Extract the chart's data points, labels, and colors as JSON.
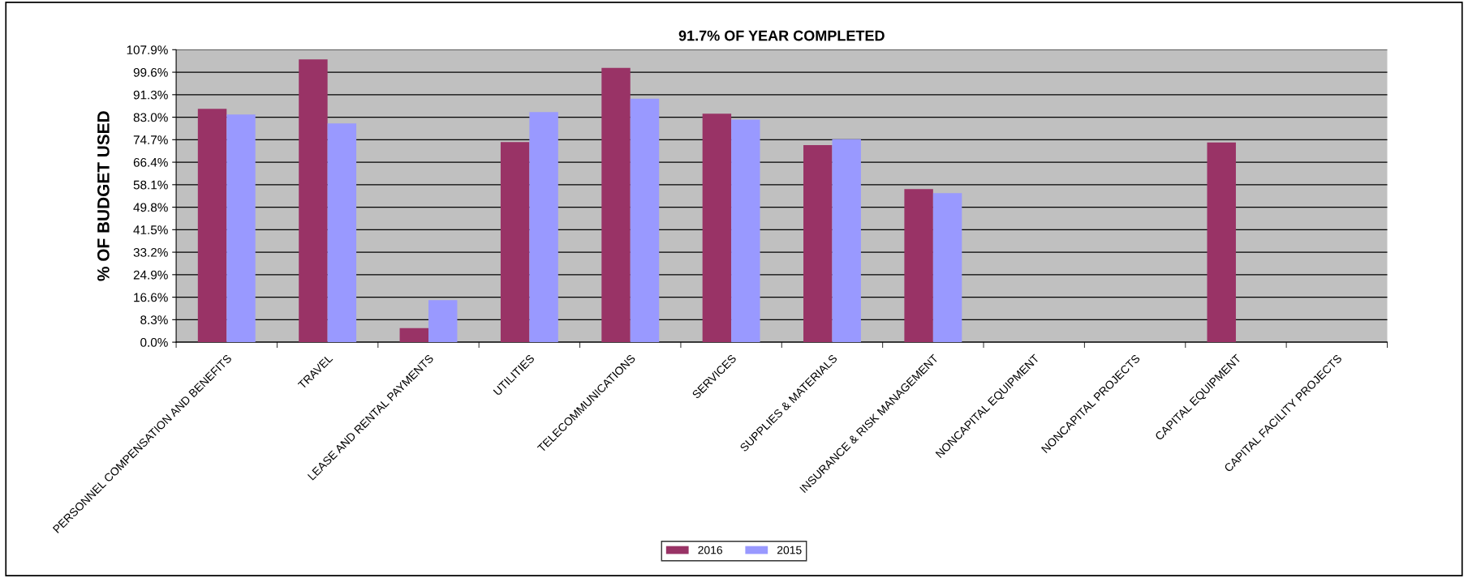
{
  "chart_data": {
    "type": "bar",
    "title": "91.7% OF YEAR COMPLETED",
    "ylabel": "% OF BUDGET USED",
    "categories": [
      "PERSONNEL COMPENSATION AND BENEFITS",
      "TRAVEL",
      "LEASE AND RENTAL PAYMENTS",
      "UTILITIES",
      "TELECOMMUNICATIONS",
      "SERVICES",
      "SUPPLIES & MATERIALS",
      "INSURANCE & RISK MANAGEMENT",
      "NONCAPITAL EQUIPMENT",
      "NONCAPITAL PROJECTS",
      "CAPITAL EQUIPMENT",
      "CAPITAL FACILITY PROJECTS"
    ],
    "series": [
      {
        "name": "2016",
        "color": "#993366",
        "values": [
          86.1,
          104.3,
          5.2,
          73.8,
          101.2,
          84.3,
          72.7,
          56.5,
          0,
          0,
          73.7,
          0
        ]
      },
      {
        "name": "2015",
        "color": "#9999ff",
        "values": [
          84.0,
          80.7,
          15.5,
          84.9,
          89.8,
          82.1,
          74.9,
          55.0,
          0,
          0,
          0,
          0
        ]
      }
    ],
    "ylim": [
      0,
      107.9
    ],
    "yticks": [
      {
        "value": 0,
        "label": "0.0%"
      },
      {
        "value": 8.3,
        "label": "8.3%"
      },
      {
        "value": 16.6,
        "label": "16.6%"
      },
      {
        "value": 24.9,
        "label": "24.9%"
      },
      {
        "value": 33.2,
        "label": "33.2%"
      },
      {
        "value": 41.5,
        "label": "41.5%"
      },
      {
        "value": 49.8,
        "label": "49.8%"
      },
      {
        "value": 58.1,
        "label": "58.1%"
      },
      {
        "value": 66.4,
        "label": "66.4%"
      },
      {
        "value": 74.7,
        "label": "74.7%"
      },
      {
        "value": 83.0,
        "label": "83.0%"
      },
      {
        "value": 91.3,
        "label": "91.3%"
      },
      {
        "value": 99.6,
        "label": "99.6%"
      },
      {
        "value": 107.9,
        "label": "107.9%"
      }
    ],
    "grid": "y",
    "legend": "bottom"
  }
}
